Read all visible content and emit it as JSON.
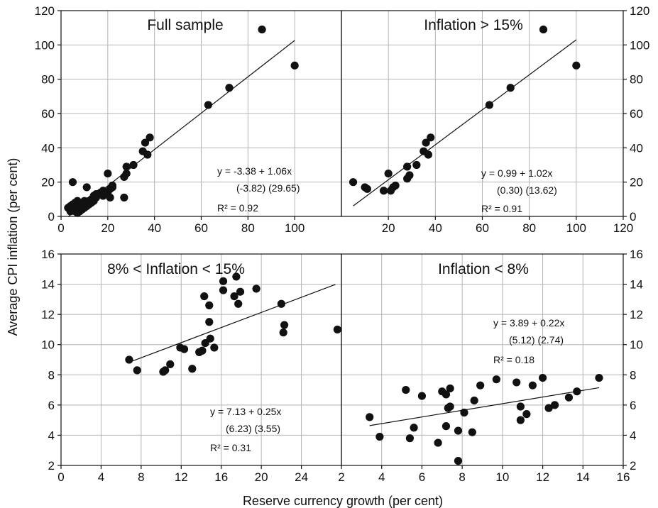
{
  "axis_labels": {
    "y": "Average CPI inflation (per cent)",
    "x": "Reserve currency growth (per cent)"
  },
  "chart_data": [
    {
      "type": "scatter",
      "title": "Full sample",
      "xlim": [
        0,
        120
      ],
      "ylim": [
        0,
        120
      ],
      "xticks": [
        0,
        20,
        40,
        60,
        80,
        100
      ],
      "yticks": [
        0,
        20,
        40,
        60,
        80,
        100,
        120
      ],
      "grid": true,
      "points": [
        [
          3,
          5
        ],
        [
          4,
          3
        ],
        [
          4,
          6
        ],
        [
          5,
          4
        ],
        [
          5,
          7
        ],
        [
          5,
          20
        ],
        [
          6,
          3
        ],
        [
          6,
          5
        ],
        [
          6,
          8
        ],
        [
          7,
          2
        ],
        [
          7,
          4
        ],
        [
          7,
          6
        ],
        [
          7,
          9
        ],
        [
          8,
          3
        ],
        [
          8,
          5
        ],
        [
          8,
          7
        ],
        [
          9,
          4
        ],
        [
          9,
          6
        ],
        [
          9,
          8
        ],
        [
          10,
          5
        ],
        [
          10,
          7
        ],
        [
          10,
          9
        ],
        [
          11,
          6
        ],
        [
          11,
          17
        ],
        [
          12,
          7
        ],
        [
          12,
          9
        ],
        [
          13,
          8
        ],
        [
          13,
          10
        ],
        [
          14,
          9
        ],
        [
          14,
          12
        ],
        [
          15,
          11
        ],
        [
          15,
          13
        ],
        [
          16,
          13
        ],
        [
          17,
          14
        ],
        [
          18,
          12
        ],
        [
          18,
          15
        ],
        [
          20,
          14
        ],
        [
          20,
          25
        ],
        [
          21,
          11
        ],
        [
          21,
          16
        ],
        [
          22,
          17
        ],
        [
          22,
          18
        ],
        [
          27,
          11
        ],
        [
          27,
          23
        ],
        [
          28,
          25
        ],
        [
          28,
          29
        ],
        [
          31,
          30
        ],
        [
          35,
          38
        ],
        [
          36,
          43
        ],
        [
          37,
          36
        ],
        [
          38,
          46
        ],
        [
          63,
          65
        ],
        [
          72,
          75
        ],
        [
          86,
          109
        ],
        [
          100,
          88
        ]
      ],
      "fit": {
        "intercept": -3.38,
        "slope": 1.06,
        "x_range": [
          3,
          100
        ]
      },
      "equation": "y = -3.38 + 1.06x",
      "tstats": "(-3.82)  (29.65)",
      "r2": "R² = 0.92"
    },
    {
      "type": "scatter",
      "title": "Inflation > 15%",
      "xlim": [
        0,
        120
      ],
      "ylim": [
        0,
        120
      ],
      "xticks": [
        20,
        40,
        60,
        80,
        100,
        120
      ],
      "yticks": [
        0,
        20,
        40,
        60,
        80,
        100,
        120
      ],
      "grid": true,
      "points": [
        [
          5,
          20
        ],
        [
          10,
          17
        ],
        [
          11,
          16
        ],
        [
          18,
          15
        ],
        [
          20,
          25
        ],
        [
          21,
          15
        ],
        [
          22,
          17
        ],
        [
          23,
          18
        ],
        [
          28,
          29
        ],
        [
          28,
          22
        ],
        [
          29,
          24
        ],
        [
          32,
          30
        ],
        [
          35,
          38
        ],
        [
          36,
          43
        ],
        [
          37,
          36
        ],
        [
          38,
          46
        ],
        [
          63,
          65
        ],
        [
          72,
          75
        ],
        [
          86,
          109
        ],
        [
          100,
          88
        ]
      ],
      "fit": {
        "intercept": 0.99,
        "slope": 1.02,
        "x_range": [
          5,
          100
        ]
      },
      "equation": "y = 0.99 + 1.02x",
      "tstats": "(0.30)  (13.62)",
      "r2": "R² = 0.91"
    },
    {
      "type": "scatter",
      "title": "8% < Inflation < 15%",
      "xlim": [
        0,
        28
      ],
      "ylim": [
        2,
        16
      ],
      "xticks": [
        0,
        4,
        8,
        12,
        16,
        20,
        24
      ],
      "yticks": [
        2,
        4,
        6,
        8,
        10,
        12,
        14,
        16
      ],
      "grid": true,
      "points": [
        [
          6.8,
          9.0
        ],
        [
          7.6,
          8.3
        ],
        [
          10.2,
          8.2
        ],
        [
          10.4,
          8.3
        ],
        [
          10.9,
          8.7
        ],
        [
          11.9,
          9.8
        ],
        [
          12.3,
          9.7
        ],
        [
          13.1,
          8.4
        ],
        [
          13.8,
          9.5
        ],
        [
          14.1,
          9.6
        ],
        [
          14.4,
          10.1
        ],
        [
          14.3,
          13.2
        ],
        [
          14.8,
          12.6
        ],
        [
          14.8,
          11.5
        ],
        [
          14.9,
          10.4
        ],
        [
          15.3,
          9.8
        ],
        [
          16.2,
          14.2
        ],
        [
          16.2,
          13.6
        ],
        [
          17.3,
          13.2
        ],
        [
          17.5,
          14.5
        ],
        [
          17.7,
          12.7
        ],
        [
          17.9,
          13.5
        ],
        [
          19.5,
          13.7
        ],
        [
          22.0,
          12.7
        ],
        [
          22.2,
          10.8
        ],
        [
          22.3,
          11.3
        ],
        [
          27.6,
          11.0
        ]
      ],
      "fit": {
        "intercept": 7.13,
        "slope": 0.25,
        "x_range": [
          6.8,
          27.4
        ]
      },
      "equation": "y = 7.13 + 0.25x",
      "tstats": "(6.23)  (3.55)",
      "r2": "R² = 0.31"
    },
    {
      "type": "scatter",
      "title": "Inflation < 8%",
      "xlim": [
        2,
        16
      ],
      "ylim": [
        2,
        16
      ],
      "xticks": [
        2,
        4,
        6,
        8,
        10,
        12,
        14,
        16
      ],
      "yticks": [
        2,
        4,
        6,
        8,
        10,
        12,
        14,
        16
      ],
      "grid": true,
      "points": [
        [
          3.4,
          5.2
        ],
        [
          3.9,
          3.9
        ],
        [
          5.2,
          7.0
        ],
        [
          5.4,
          3.8
        ],
        [
          5.6,
          4.5
        ],
        [
          6.0,
          6.6
        ],
        [
          6.8,
          3.5
        ],
        [
          7.0,
          6.9
        ],
        [
          7.2,
          6.7
        ],
        [
          7.2,
          4.6
        ],
        [
          7.3,
          5.8
        ],
        [
          7.4,
          7.1
        ],
        [
          7.4,
          5.9
        ],
        [
          7.8,
          2.3
        ],
        [
          7.8,
          4.3
        ],
        [
          8.1,
          5.5
        ],
        [
          8.5,
          4.2
        ],
        [
          8.6,
          6.3
        ],
        [
          8.9,
          7.3
        ],
        [
          9.7,
          7.7
        ],
        [
          10.7,
          7.5
        ],
        [
          10.9,
          5.0
        ],
        [
          10.9,
          5.9
        ],
        [
          11.2,
          5.4
        ],
        [
          11.5,
          7.3
        ],
        [
          12.0,
          7.8
        ],
        [
          12.3,
          5.8
        ],
        [
          12.6,
          6.0
        ],
        [
          13.3,
          6.5
        ],
        [
          13.7,
          6.9
        ],
        [
          14.8,
          7.8
        ]
      ],
      "fit": {
        "intercept": 3.89,
        "slope": 0.22,
        "x_range": [
          3.4,
          14.8
        ]
      },
      "equation": "y = 3.89 + 0.22x",
      "tstats": "(5.12)  (2.74)",
      "r2": "R² = 0.18"
    }
  ]
}
